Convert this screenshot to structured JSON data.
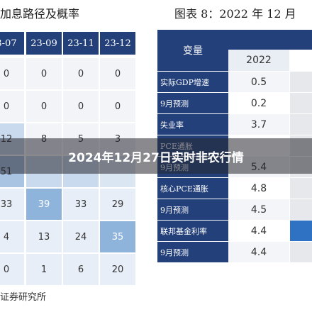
{
  "left": {
    "title": "加息路径及概率",
    "columns": [
      "3-07",
      "23-09",
      "23-11",
      "23-12"
    ],
    "rows": [
      [
        "0",
        "0",
        "0",
        "0"
      ],
      [
        "0",
        "0",
        "0",
        "0"
      ],
      [
        "12",
        "8",
        "5",
        "3"
      ],
      [
        "51",
        "",
        "",
        ""
      ],
      [
        "33",
        "39",
        "33",
        "29"
      ],
      [
        "4",
        "13",
        "24",
        "35"
      ],
      [
        "0",
        "1",
        "6",
        "20"
      ]
    ],
    "footer": "证券研究所"
  },
  "right": {
    "title": "图表 8：2022 年 12 月",
    "header_label": "变量",
    "year": "2022",
    "rows": [
      {
        "label": "实际GDP增速",
        "value": "0.5"
      },
      {
        "label": "9月预测",
        "value": "0.2"
      },
      {
        "label": "失业率",
        "value": "3.7"
      },
      {
        "label": "PCE通胀",
        "value": ""
      },
      {
        "label": "9月预测",
        "value": "5.4"
      },
      {
        "label": "核心PCE通胀",
        "value": "4.8"
      },
      {
        "label": "9月预测",
        "value": "4.5"
      },
      {
        "label": "联邦基金利率",
        "value": "4.4"
      },
      {
        "label": "9月预测",
        "value": "4.4"
      }
    ]
  },
  "overlay": {
    "text": "2024年12月27日实时非农行情"
  }
}
